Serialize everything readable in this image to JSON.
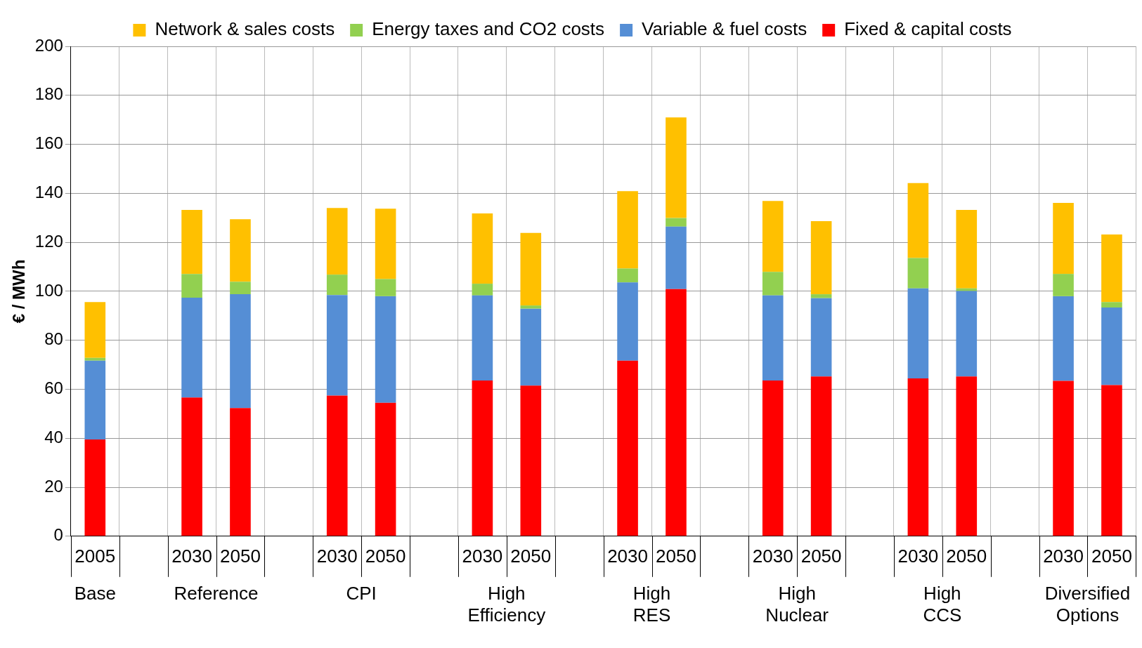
{
  "chart_data": {
    "type": "bar",
    "stacked": true,
    "ylabel": "€ / MWh",
    "ylim": [
      0,
      200
    ],
    "yticks": [
      0,
      20,
      40,
      60,
      80,
      100,
      120,
      140,
      160,
      180,
      200
    ],
    "grid": true,
    "legend": "top",
    "categories": [
      "2005",
      null,
      "2030",
      "2050",
      null,
      "2030",
      "2050",
      null,
      "2030",
      "2050",
      null,
      "2030",
      "2050",
      null,
      "2030",
      "2050",
      null,
      "2030",
      "2050",
      null,
      "2030",
      "2050"
    ],
    "annotations": [
      "Base",
      "Reference",
      "CPI",
      "High Efficiency",
      "High RES",
      "High Nuclear",
      "High CCS",
      "Diversified Options"
    ],
    "series": [
      {
        "name": "Fixed & capital costs",
        "color": "#ff0000",
        "values": [
          39.5,
          null,
          56.6,
          52.3,
          null,
          57.4,
          54.5,
          null,
          63.6,
          61.5,
          null,
          71.7,
          100.9,
          null,
          63.6,
          65.2,
          null,
          64.4,
          65.2,
          null,
          63.4,
          61.7
        ]
      },
      {
        "name": "Variable & fuel costs",
        "color": "#558ed5",
        "values": [
          32.2,
          null,
          40.8,
          46.5,
          null,
          41.1,
          43.5,
          null,
          34.7,
          31.4,
          null,
          31.9,
          25.5,
          null,
          34.7,
          32,
          null,
          36.8,
          34.9,
          null,
          34.6,
          31.7
        ]
      },
      {
        "name": "Energy taxes and CO2 costs",
        "color": "#92d050",
        "values": [
          1.1,
          null,
          9.7,
          5.1,
          null,
          8.3,
          7,
          null,
          4.8,
          1.3,
          null,
          5.7,
          3.5,
          null,
          9.6,
          1.6,
          null,
          12.4,
          1.1,
          null,
          9.1,
          2.2
        ]
      },
      {
        "name": "Network & sales costs",
        "color": "#ffc000",
        "values": [
          22.8,
          null,
          26.1,
          25.5,
          null,
          27.2,
          28.7,
          null,
          28.7,
          29.6,
          null,
          31.6,
          41.1,
          null,
          29,
          29.8,
          null,
          30.6,
          32,
          null,
          29,
          27.6
        ]
      }
    ]
  }
}
